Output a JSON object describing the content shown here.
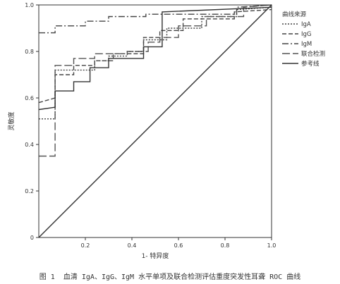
{
  "chart_data": {
    "type": "line",
    "title": "",
    "xlabel": "1- 特异度",
    "ylabel": "灵敏度",
    "xlim": [
      0,
      1
    ],
    "ylim": [
      0,
      1
    ],
    "x_ticks": [
      "0.2",
      "0.4",
      "0.6",
      "0.8",
      "1.0"
    ],
    "x_tick_values": [
      0.2,
      0.4,
      0.6,
      0.8,
      1.0
    ],
    "y_ticks": [
      "0",
      "0.2",
      "0.4",
      "0.6",
      "0.8",
      "1.0"
    ],
    "y_tick_values": [
      0,
      0.2,
      0.4,
      0.6,
      0.8,
      1.0
    ],
    "grid": false,
    "legend": {
      "title": "曲线来源",
      "position": "right",
      "entries": [
        "IgA",
        "IgG",
        "IgM",
        "联合检测",
        "参考线"
      ]
    },
    "series": [
      {
        "name": "IgA",
        "color": "#444444",
        "style": "dotted",
        "points": [
          [
            0,
            0.51
          ],
          [
            0.07,
            0.51
          ],
          [
            0.07,
            0.72
          ],
          [
            0.24,
            0.72
          ],
          [
            0.24,
            0.76
          ],
          [
            0.3,
            0.76
          ],
          [
            0.3,
            0.78
          ],
          [
            0.38,
            0.78
          ],
          [
            0.38,
            0.8
          ],
          [
            0.45,
            0.8
          ],
          [
            0.45,
            0.85
          ],
          [
            0.55,
            0.85
          ],
          [
            0.55,
            0.9
          ],
          [
            0.7,
            0.9
          ],
          [
            0.7,
            0.95
          ],
          [
            0.85,
            0.95
          ],
          [
            0.85,
            0.98
          ],
          [
            1,
            0.99
          ]
        ]
      },
      {
        "name": "IgG",
        "color": "#444444",
        "style": "dashed",
        "points": [
          [
            0,
            0.58
          ],
          [
            0.07,
            0.6
          ],
          [
            0.07,
            0.7
          ],
          [
            0.15,
            0.7
          ],
          [
            0.15,
            0.74
          ],
          [
            0.24,
            0.74
          ],
          [
            0.24,
            0.76
          ],
          [
            0.32,
            0.76
          ],
          [
            0.32,
            0.79
          ],
          [
            0.45,
            0.79
          ],
          [
            0.45,
            0.86
          ],
          [
            0.52,
            0.86
          ],
          [
            0.52,
            0.89
          ],
          [
            0.62,
            0.89
          ],
          [
            0.62,
            0.94
          ],
          [
            0.84,
            0.94
          ],
          [
            0.84,
            0.97
          ],
          [
            1,
            0.98
          ]
        ]
      },
      {
        "name": "IgM",
        "color": "#444444",
        "style": "dashdot",
        "points": [
          [
            0,
            0.88
          ],
          [
            0.07,
            0.88
          ],
          [
            0.07,
            0.91
          ],
          [
            0.2,
            0.91
          ],
          [
            0.2,
            0.93
          ],
          [
            0.3,
            0.93
          ],
          [
            0.3,
            0.95
          ],
          [
            0.46,
            0.95
          ],
          [
            0.46,
            0.96
          ],
          [
            0.85,
            0.96
          ],
          [
            0.85,
            0.99
          ],
          [
            1,
            1.0
          ]
        ]
      },
      {
        "name": "联合检测",
        "color": "#555555",
        "style": "longdash",
        "points": [
          [
            0,
            0.35
          ],
          [
            0.07,
            0.35
          ],
          [
            0.07,
            0.74
          ],
          [
            0.15,
            0.74
          ],
          [
            0.15,
            0.77
          ],
          [
            0.24,
            0.77
          ],
          [
            0.24,
            0.79
          ],
          [
            0.38,
            0.79
          ],
          [
            0.38,
            0.8
          ],
          [
            0.47,
            0.8
          ],
          [
            0.47,
            0.84
          ],
          [
            0.52,
            0.84
          ],
          [
            0.52,
            0.86
          ],
          [
            0.6,
            0.86
          ],
          [
            0.6,
            0.91
          ],
          [
            0.72,
            0.91
          ],
          [
            0.72,
            0.95
          ],
          [
            0.88,
            0.95
          ],
          [
            0.88,
            0.99
          ],
          [
            1,
            1.0
          ]
        ]
      },
      {
        "name": "参考线",
        "color": "#333333",
        "style": "solid",
        "points": [
          [
            0,
            0.55
          ],
          [
            0.07,
            0.56
          ],
          [
            0.07,
            0.63
          ],
          [
            0.15,
            0.63
          ],
          [
            0.15,
            0.67
          ],
          [
            0.22,
            0.67
          ],
          [
            0.22,
            0.73
          ],
          [
            0.3,
            0.73
          ],
          [
            0.3,
            0.77
          ],
          [
            0.45,
            0.77
          ],
          [
            0.45,
            0.82
          ],
          [
            0.53,
            0.82
          ],
          [
            0.53,
            0.97
          ],
          [
            1,
            0.99
          ]
        ]
      },
      {
        "name": "diagonal",
        "color": "#333333",
        "style": "solid",
        "points": [
          [
            0,
            0
          ],
          [
            1,
            1
          ]
        ]
      }
    ]
  },
  "caption": "图 1  血清 IgA、IgG、IgM 水平单项及联合检测评估重度突发性耳聋 ROC 曲线"
}
